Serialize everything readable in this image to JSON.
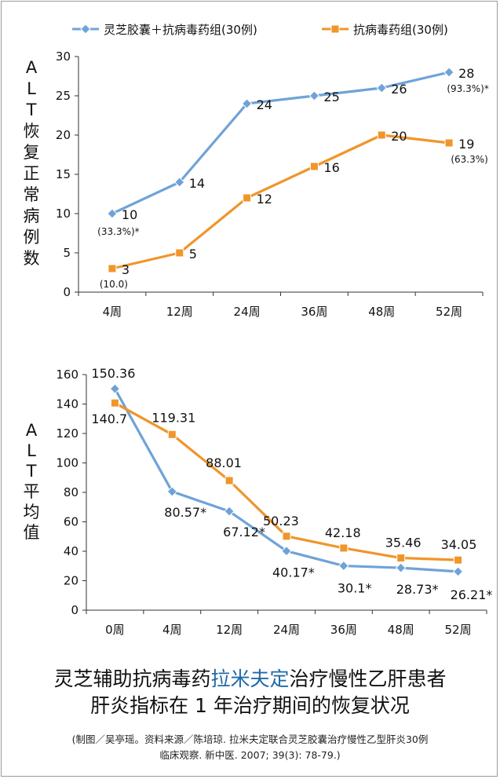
{
  "chart_data": [
    {
      "type": "line",
      "ylabel": "ALT恢复正常病例数",
      "categories": [
        "4周",
        "12周",
        "24周",
        "36周",
        "48周",
        "52周"
      ],
      "ylim": [
        0,
        30
      ],
      "yticks": [
        0,
        5,
        10,
        15,
        20,
        25,
        30
      ],
      "grid": false,
      "legend": "top",
      "series": [
        {
          "name": "灵芝胶囊＋抗病毒药组(30例)",
          "color": "#6fa3d8",
          "marker": "diamond",
          "values": [
            10,
            14,
            24,
            25,
            26,
            28
          ],
          "labels": [
            "10",
            "14",
            "24",
            "25",
            "26",
            "28"
          ]
        },
        {
          "name": "抗病毒药组(30例)",
          "color": "#f0952a",
          "marker": "square",
          "values": [
            3,
            5,
            12,
            16,
            20,
            19
          ],
          "labels": [
            "3",
            "5",
            "12",
            "16",
            "20",
            "19"
          ]
        }
      ],
      "annotations": [
        "(33.3%)*",
        "(10.0)",
        "(93.3%)*",
        "(63.3%)"
      ]
    },
    {
      "type": "line",
      "ylabel": "ALT平均值",
      "categories": [
        "0周",
        "4周",
        "12周",
        "24周",
        "36周",
        "48周",
        "52周"
      ],
      "ylim": [
        0,
        160
      ],
      "yticks": [
        0,
        20,
        40,
        60,
        80,
        100,
        120,
        140,
        160
      ],
      "grid": false,
      "series": [
        {
          "color": "#6fa3d8",
          "marker": "diamond",
          "values": [
            150.36,
            80.57,
            67.12,
            40.17,
            30.1,
            28.73,
            26.21
          ],
          "labels": [
            "150.36",
            "80.57*",
            "67.12*",
            "40.17*",
            "30.1*",
            "28.73*",
            "26.21*"
          ]
        },
        {
          "color": "#f0952a",
          "marker": "square",
          "values": [
            140.7,
            119.31,
            88.01,
            50.23,
            42.18,
            35.46,
            34.05
          ],
          "labels": [
            "140.7",
            "119.31",
            "88.01",
            "50.23",
            "42.18",
            "35.46",
            "34.05"
          ]
        }
      ]
    }
  ],
  "caption": {
    "title_part1": "灵芝辅助抗病毒药",
    "title_highlight": "拉米夫定",
    "title_part2": "治疗慢性乙肝患者",
    "title_line2": "肝炎指标在 1 年治疗期间的恢复状况",
    "source_line1": "(制图／吴亭瑶。资料来源／陈培琼. 拉米夫定联合灵芝胶囊治疗慢性乙型肝炎30例",
    "source_line2": "临床观察. 新中医. 2007; 39(3): 78-79.)"
  }
}
